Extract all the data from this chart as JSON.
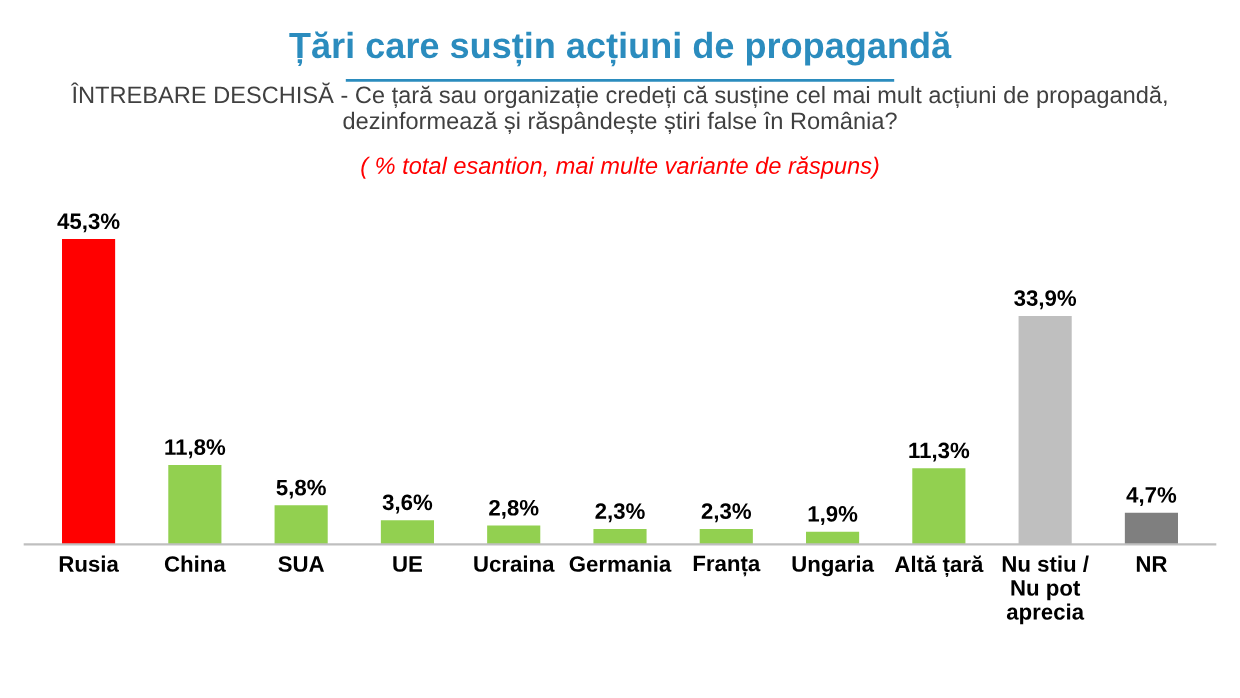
{
  "chart_data": {
    "type": "bar",
    "title": "Țări care susțin acțiuni de propagandă",
    "subtitle": "ÎNTREBARE DESCHISĂ - Ce țară sau organizație credeți că susține cel mai mult acțiuni de propagandă, dezinformează și răspândește știri false în România?",
    "annotations": [
      "( % total esantion, mai multe variante de răspuns)"
    ],
    "categories": [
      "Rusia",
      "China",
      "SUA",
      "UE",
      "Ucraina",
      "Germania",
      "Franța",
      "Ungaria",
      "Altă țară",
      "Nu stiu / Nu pot aprecia",
      "NR"
    ],
    "values": [
      45.3,
      11.8,
      5.8,
      3.6,
      2.8,
      2.3,
      2.3,
      1.9,
      11.3,
      33.9,
      4.7
    ],
    "colors": [
      "#ff0000",
      "#92d050",
      "#92d050",
      "#92d050",
      "#92d050",
      "#92d050",
      "#92d050",
      "#92d050",
      "#92d050",
      "#bfbfbf",
      "#7f7f7f"
    ],
    "value_labels": [
      "45,3%",
      "11,8%",
      "5,8%",
      "3,6%",
      "2,8%",
      "2,3%",
      "2,3%",
      "1,9%",
      "11,3%",
      "33,9%",
      "4,7%"
    ],
    "grid": false,
    "legend": false
  }
}
